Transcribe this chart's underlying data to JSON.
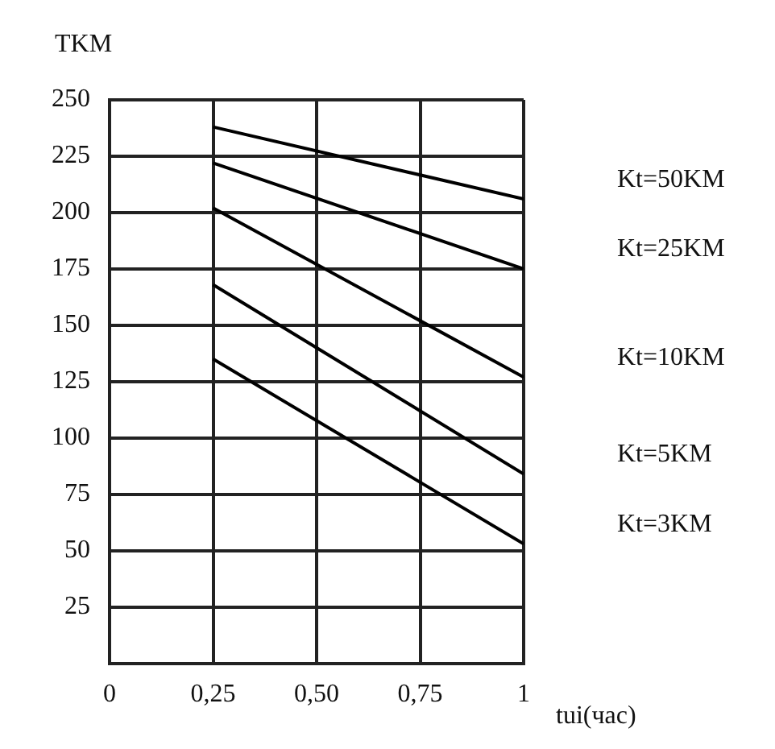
{
  "chart_data": {
    "type": "line",
    "xlabel": "tui(час)",
    "ylabel": "TKM",
    "x": [
      0.25,
      1
    ],
    "series": [
      {
        "name": "Kt=50KM",
        "color": "#000000",
        "values": [
          238,
          206
        ]
      },
      {
        "name": "Kt=25KM",
        "color": "#000000",
        "values": [
          222,
          175
        ]
      },
      {
        "name": "Kt=10KM",
        "color": "#000000",
        "values": [
          202,
          127
        ]
      },
      {
        "name": "Kt=5KM",
        "color": "#000000",
        "values": [
          168,
          84
        ]
      },
      {
        "name": "Kt=3KM",
        "color": "#000000",
        "values": [
          135,
          53
        ]
      }
    ],
    "xlim": [
      0,
      1
    ],
    "xticks": [
      0,
      {
        "value": 0.25,
        "label": "0,25"
      },
      {
        "value": 0.5,
        "label": "0,50"
      },
      {
        "value": 0.75,
        "label": "0,75"
      },
      1
    ],
    "ylim": [
      0,
      250
    ],
    "yticks": [
      {
        "value": 0,
        "label": null
      },
      25,
      50,
      75,
      100,
      125,
      150,
      175,
      200,
      225,
      250
    ],
    "grid": true,
    "legend": false,
    "marker": "none",
    "line_style": "solid"
  }
}
